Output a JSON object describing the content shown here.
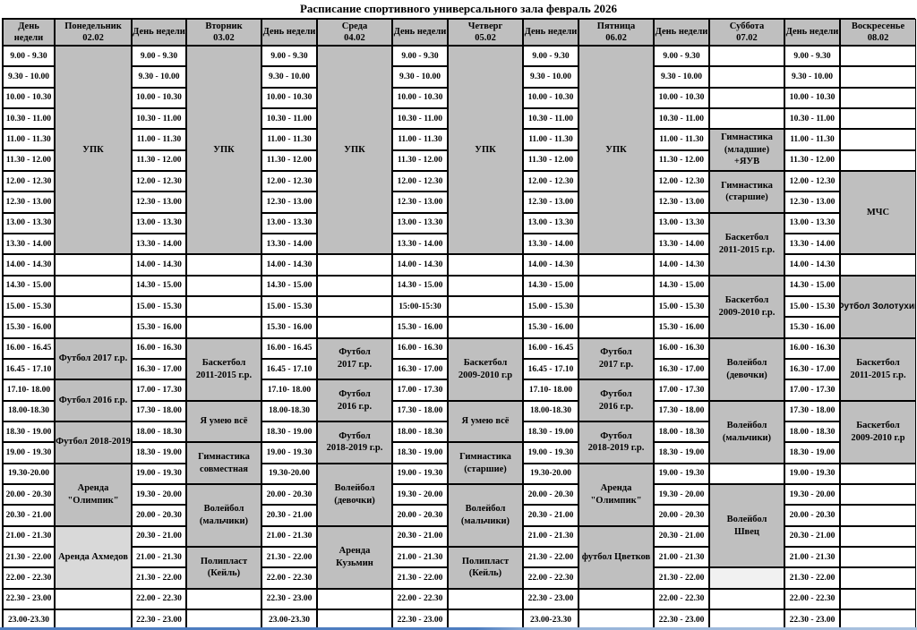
{
  "title": "Расписание спортивного универсального зала февраль 2026",
  "day_header_label": "День недели",
  "colors": {
    "header_bg": "#bfbfbf",
    "block_bg": "#bfbfbf",
    "light_block_bg": "#d9d9d9",
    "pale_block_bg": "#f1f1f1",
    "border": "#000000",
    "bottom_line_blue": "#4d7dc0"
  },
  "days": [
    {
      "name": "Понедельник",
      "date": "02.02",
      "times": [
        "9.00 - 9.30",
        "9.30 - 10.00",
        "10.00 - 10.30",
        "10.30 - 11.00",
        "11.00 - 11.30",
        "11.30 - 12.00",
        "12.00 - 12.30",
        "12.30 - 13.00",
        "13.00 - 13.30",
        "13.30 - 14.00",
        "14.00 - 14.30",
        "14.30 - 15.00",
        "15.00 - 15.30",
        "15.30 - 16.00",
        "16.00 - 16.45",
        "16.45 - 17.10",
        "17.10- 18.00",
        "18.00-18.30",
        "18.30 - 19.00",
        "19.00 - 19.30",
        "19.30-20.00",
        "20.00 - 20.30",
        "20.30 - 21.00",
        "21.00 - 21.30",
        "21.30 - 22.00",
        "22.00 - 22.30",
        "22.30 - 23.00",
        "23.00-23.30"
      ],
      "blocks": [
        {
          "label": "УПК",
          "start": 0,
          "span": 10,
          "shade": "g"
        },
        {
          "label": "Футбол 2017 г.р.",
          "start": 14,
          "span": 2,
          "shade": "g",
          "nowrap": true
        },
        {
          "label": "Футбол 2016 г.р.",
          "start": 16,
          "span": 2,
          "shade": "g",
          "nowrap": true
        },
        {
          "label": "Футбол 2018-2019",
          "start": 18,
          "span": 2,
          "shade": "g",
          "nowrap": true
        },
        {
          "label": "Аренда\n\"Олимпик\"",
          "start": 20,
          "span": 3,
          "shade": "g"
        },
        {
          "label": "Аренда Ахмедов",
          "start": 23,
          "span": 3,
          "shade": "l",
          "nowrap": true
        }
      ]
    },
    {
      "name": "Вторник",
      "date": "03.02",
      "times": [
        "9.00 - 9.30",
        "9.30 - 10.00",
        "10.00 - 10.30",
        "10.30 - 11.00",
        "11.00 - 11.30",
        "11.30 - 12.00",
        "12.00 - 12.30",
        "12.30 - 13.00",
        "13.00 - 13.30",
        "13.30 - 14.00",
        "14.00 - 14.30",
        "14.30 - 15.00",
        "15.00 - 15.30",
        "15.30 - 16.00",
        "16.00 - 16.30",
        "16.30 - 17.00",
        "17.00 - 17.30",
        "17.30 - 18.00",
        "18.00 - 18.30",
        "18.30 - 19.00",
        "19.00 - 19.30",
        "19.30 - 20.00",
        "20.00 - 20.30",
        "20.30 - 21.00",
        "21.00 - 21.30",
        "21.30 - 22.00",
        "22.00 - 22.30",
        "22.30 - 23.00"
      ],
      "blocks": [
        {
          "label": "УПК",
          "start": 0,
          "span": 10,
          "shade": "g"
        },
        {
          "label": "Баскетбол\n2011-2015 г.р.",
          "start": 14,
          "span": 3,
          "shade": "g"
        },
        {
          "label": "Я умею всё",
          "start": 17,
          "span": 2,
          "shade": "g",
          "nowrap": true
        },
        {
          "label": "Гимнастика\nсовместная",
          "start": 19,
          "span": 2,
          "shade": "g"
        },
        {
          "label": "Волейбол\n(мальчики)",
          "start": 21,
          "span": 3,
          "shade": "g"
        },
        {
          "label": "Полипласт\n(Кейль)",
          "start": 24,
          "span": 2,
          "shade": "g"
        }
      ]
    },
    {
      "name": "Среда",
      "date": "04.02",
      "times": [
        "9.00 - 9.30",
        "9.30 - 10.00",
        "10.00 - 10.30",
        "10.30 - 11.00",
        "11.00 - 11.30",
        "11.30 - 12.00",
        "12.00 - 12.30",
        "12.30 - 13.00",
        "13.00 - 13.30",
        "13.30 - 14.00",
        "14.00 - 14.30",
        "14.30 - 15.00",
        "15.00 - 15.30",
        "15.30 - 16.00",
        "16.00 - 16.45",
        "16.45 - 17.10",
        "17.10- 18.00",
        "18.00-18.30",
        "18.30 - 19.00",
        "19.00 - 19.30",
        "19.30-20.00",
        "20.00 - 20.30",
        "20.30 - 21.00",
        "21.00 - 21.30",
        "21.30 - 22.00",
        "22.00 - 22.30",
        "22.30 - 23.00",
        "23.00-23.30"
      ],
      "blocks": [
        {
          "label": "УПК",
          "start": 0,
          "span": 10,
          "shade": "g"
        },
        {
          "label": "Футбол\n2017 г.р.",
          "start": 14,
          "span": 2,
          "shade": "g"
        },
        {
          "label": "Футбол\n2016 г.р.",
          "start": 16,
          "span": 2,
          "shade": "g"
        },
        {
          "label": "Футбол\n2018-2019 г.р.",
          "start": 18,
          "span": 2,
          "shade": "g"
        },
        {
          "label": "Волейбол\n(девочки)",
          "start": 20,
          "span": 3,
          "shade": "g"
        },
        {
          "label": "Аренда\nКузьмин",
          "start": 23,
          "span": 3,
          "shade": "g"
        }
      ]
    },
    {
      "name": "Четверг",
      "date": "05.02",
      "times": [
        "9.00 - 9.30",
        "9.30 - 10.00",
        "10.00 - 10.30",
        "10.30 - 11.00",
        "11.00 - 11.30",
        "11.30 - 12.00",
        "12.00 - 12.30",
        "12.30 - 13.00",
        "13.00 - 13.30",
        "13.30 - 14.00",
        "14.00 - 14.30",
        "14.30 - 15.00",
        "15:00-15:30",
        "15.30 - 16.00",
        "16.00 - 16.30",
        "16.30 - 17.00",
        "17.00 - 17.30",
        "17.30 - 18.00",
        "18.00 - 18.30",
        "18.30 - 19.00",
        "19.00 - 19.30",
        "19.30 - 20.00",
        "20.00 - 20.30",
        "20.30 - 21.00",
        "21.00 - 21.30",
        "21.30 - 22.00",
        "22.00 - 22.30",
        "22.30 - 23.00"
      ],
      "blocks": [
        {
          "label": "УПК",
          "start": 0,
          "span": 10,
          "shade": "g"
        },
        {
          "label": "Баскетбол\n2009-2010 г.р",
          "start": 14,
          "span": 3,
          "shade": "g"
        },
        {
          "label": "Я умею всё",
          "start": 17,
          "span": 2,
          "shade": "g",
          "nowrap": true
        },
        {
          "label": "Гимнастика\n(старшие)",
          "start": 19,
          "span": 2,
          "shade": "g"
        },
        {
          "label": "Волейбол\n(мальчики)",
          "start": 21,
          "span": 3,
          "shade": "g"
        },
        {
          "label": "Полипласт\n(Кейль)",
          "start": 24,
          "span": 2,
          "shade": "g"
        }
      ]
    },
    {
      "name": "Пятница",
      "date": "06.02",
      "times": [
        "9.00 - 9.30",
        "9.30 - 10.00",
        "10.00 - 10.30",
        "10.30 - 11.00",
        "11.00 - 11.30",
        "11.30 - 12.00",
        "12.00 - 12.30",
        "12.30 - 13.00",
        "13.00 - 13.30",
        "13.30 - 14.00",
        "14.00 - 14.30",
        "14.30 - 15.00",
        "15.00 - 15.30",
        "15.30 - 16.00",
        "16.00 - 16.45",
        "16.45 - 17.10",
        "17.10- 18.00",
        "18.00-18.30",
        "18.30 - 19.00",
        "19.00 - 19.30",
        "19.30-20.00",
        "20.00 - 20.30",
        "20.30 - 21.00",
        "21.00 - 21.30",
        "21.30 - 22.00",
        "22.00 - 22.30",
        "22.30 - 23.00",
        "23.00-23.30"
      ],
      "blocks": [
        {
          "label": "УПК",
          "start": 0,
          "span": 10,
          "shade": "g"
        },
        {
          "label": "Футбол\n2017 г.р.",
          "start": 14,
          "span": 2,
          "shade": "g"
        },
        {
          "label": "Футбол\n2016 г.р.",
          "start": 16,
          "span": 2,
          "shade": "g"
        },
        {
          "label": "Футбол\n2018-2019 г.р.",
          "start": 18,
          "span": 2,
          "shade": "g"
        },
        {
          "label": "Аренда\n\"Олимпик\"",
          "start": 20,
          "span": 3,
          "shade": "g"
        },
        {
          "label": "футбол Цветков",
          "start": 23,
          "span": 3,
          "shade": "g",
          "nowrap": true
        }
      ]
    },
    {
      "name": "Суббота",
      "date": "07.02",
      "times": [
        "9.00 - 9.30",
        "9.30 - 10.00",
        "10.00 - 10.30",
        "10.30 - 11.00",
        "11.00 - 11.30",
        "11.30 - 12.00",
        "12.00 - 12.30",
        "12.30 - 13.00",
        "13.00 - 13.30",
        "13.30 - 14.00",
        "14.00 - 14.30",
        "14.30 - 15.00",
        "15.00 - 15.30",
        "15.30 - 16.00",
        "16.00 - 16.30",
        "16.30 - 17.00",
        "17.00 - 17.30",
        "17.30 - 18.00",
        "18.00 - 18.30",
        "18.30 - 19.00",
        "19.00 - 19.30",
        "19.30 - 20.00",
        "20.00 - 20.30",
        "20.30 - 21.00",
        "21.00 - 21.30",
        "21.30 - 22.00",
        "22.00 - 22.30",
        "22.30 - 23.00"
      ],
      "blocks": [
        {
          "label": "Гимнастика\n(младшие)\n+ЯУВ",
          "start": 4,
          "span": 2,
          "shade": "g"
        },
        {
          "label": "Гимнастика\n(старшие)",
          "start": 6,
          "span": 2,
          "shade": "g"
        },
        {
          "label": "Баскетбол\n2011-2015 г.р.",
          "start": 8,
          "span": 3,
          "shade": "g"
        },
        {
          "label": "Баскетбол\n2009-2010 г.р.",
          "start": 11,
          "span": 3,
          "shade": "g"
        },
        {
          "label": "Волейбол\n(девочки)",
          "start": 14,
          "span": 3,
          "shade": "g"
        },
        {
          "label": "Волейбол\n(мальчики)",
          "start": 17,
          "span": 3,
          "shade": "g"
        },
        {
          "label": "Волейбол\nШвец",
          "start": 21,
          "span": 4,
          "shade": "g"
        },
        {
          "label": "",
          "start": 25,
          "span": 1,
          "shade": "p"
        }
      ]
    },
    {
      "name": "Воскресенье",
      "date": "08.02",
      "times": [
        "9.00 - 9.30",
        "9.30 - 10.00",
        "10.00 - 10.30",
        "10.30 - 11.00",
        "11.00 - 11.30",
        "11.30 - 12.00",
        "12.00 - 12.30",
        "12.30 - 13.00",
        "13.00 - 13.30",
        "13.30 - 14.00",
        "14.00 - 14.30",
        "14.30 - 15.00",
        "15.00 - 15.30",
        "15.30 - 16.00",
        "16.00 - 16.30",
        "16.30 - 17.00",
        "17.00 - 17.30",
        "17.30 - 18.00",
        "18.00 - 18.30",
        "18.30 - 19.00",
        "19.00 - 19.30",
        "19.30 - 20.00",
        "20.00 - 20.30",
        "20.30 - 21.00",
        "21.00 - 21.30",
        "21.30 - 22.00",
        "22.00 - 22.30",
        "22.30 - 23.00"
      ],
      "blocks": [
        {
          "label": "МЧС",
          "start": 6,
          "span": 4,
          "shade": "g"
        },
        {
          "label": "Футбол Золотухин",
          "start": 11,
          "span": 3,
          "shade": "g",
          "nowrap": true,
          "sans": true
        },
        {
          "label": "Баскетбол\n2011-2015 г.р.",
          "start": 14,
          "span": 3,
          "shade": "g"
        },
        {
          "label": "Баскетбол\n2009-2010 г.р",
          "start": 17,
          "span": 3,
          "shade": "g"
        }
      ]
    }
  ]
}
